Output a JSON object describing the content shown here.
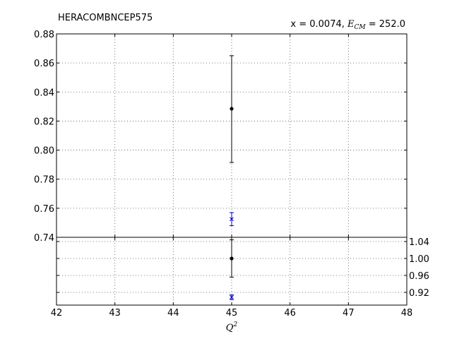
{
  "chart_data": {
    "type": "scatter",
    "title": "HERACOMBNCEP575",
    "annotation": {
      "prefix": "x = 0.0074, ",
      "energy_symbol": "E",
      "energy_subscript": "CM",
      "suffix": " = 252.0"
    },
    "xlabel": {
      "symbol": "Q",
      "superscript": "2"
    },
    "xlim": [
      42,
      48
    ],
    "x_ticks": [
      "42",
      "43",
      "44",
      "45",
      "46",
      "47",
      "48"
    ],
    "grid": true,
    "colors": {
      "data": "#000000",
      "theory": "#0000cc",
      "grid": "#555555"
    },
    "top_panel": {
      "ylim": [
        0.74,
        0.88
      ],
      "y_ticks": [
        "0.74",
        "0.76",
        "0.78",
        "0.80",
        "0.82",
        "0.84",
        "0.86",
        "0.88"
      ],
      "series": [
        {
          "marker": "dot",
          "color": "#000000",
          "x": 45,
          "y": 0.8285,
          "yerr_low": 0.7915,
          "yerr_high": 0.865
        },
        {
          "marker": "x",
          "color": "#0000cc",
          "x": 45,
          "y": 0.7525,
          "yerr_low": 0.748,
          "yerr_high": 0.757
        }
      ]
    },
    "bottom_panel": {
      "ylim": [
        0.89,
        1.05
      ],
      "y_ticks": [
        "0.92",
        "0.96",
        "1.00",
        "1.04"
      ],
      "series": [
        {
          "marker": "dot",
          "color": "#000000",
          "x": 45,
          "y": 1.0,
          "yerr_low": 0.956,
          "yerr_high": 1.044
        },
        {
          "marker": "x",
          "color": "#0000cc",
          "x": 45,
          "y": 0.9085,
          "yerr_low": 0.903,
          "yerr_high": 0.914
        }
      ]
    }
  }
}
